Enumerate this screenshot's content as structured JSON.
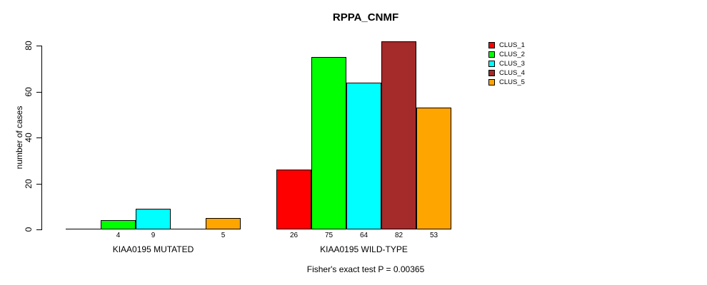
{
  "title": "RPPA_CNMF",
  "chart_data": {
    "type": "bar",
    "title": "RPPA_CNMF",
    "ylabel": "number of cases",
    "xlabel": "",
    "ylim": [
      0,
      80
    ],
    "yticks": [
      0,
      20,
      40,
      60,
      80
    ],
    "grid": false,
    "legend_position": "right-inside",
    "series_names": [
      "CLUS_1",
      "CLUS_2",
      "CLUS_3",
      "CLUS_4",
      "CLUS_5"
    ],
    "colors": [
      "#ff0000",
      "#00ff00",
      "#00ffff",
      "#a52a2a",
      "#ffa500"
    ],
    "groups": [
      {
        "label": "KIAA0195 MUTATED",
        "values": [
          0,
          4,
          9,
          0,
          5
        ]
      },
      {
        "label": "KIAA0195 WILD-TYPE",
        "values": [
          26,
          75,
          64,
          82,
          53
        ]
      }
    ],
    "footer": "Fisher's exact test P = 0.00365",
    "background_color": "#ffffff",
    "text_color": "#000000"
  }
}
